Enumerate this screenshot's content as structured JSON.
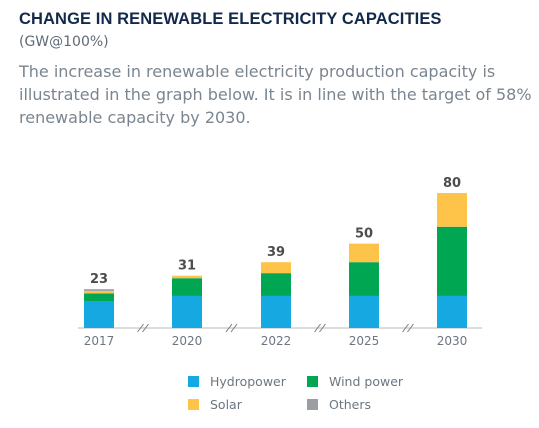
{
  "header": {
    "title": "CHANGE IN RENEWABLE ELECTRICITY CAPACITIES",
    "subtitle": "(GW@100%)",
    "description": "The increase in renewable electricity production capacity is illustrated in the graph below. It is in line with the target of 58% renewable capacity by 2030."
  },
  "colors": {
    "hydropower": "#16a9e1",
    "wind": "#00a651",
    "solar": "#fdc449",
    "others": "#9a9da1",
    "axis": "#b5b8bb",
    "total_label": "#4d4d4d",
    "tick_label": "#6b7680"
  },
  "chart_data": {
    "type": "bar",
    "stacked": true,
    "categories": [
      "2017",
      "2020",
      "2022",
      "2025",
      "2030"
    ],
    "series": [
      {
        "name": "Hydropower",
        "values": [
          16,
          19,
          19,
          19,
          19
        ]
      },
      {
        "name": "Wind power",
        "values": [
          4.5,
          10.5,
          13.5,
          20,
          41
        ]
      },
      {
        "name": "Solar",
        "values": [
          1.5,
          1.5,
          6.5,
          11,
          20
        ]
      },
      {
        "name": "Others",
        "values": [
          1,
          0,
          0,
          0,
          0
        ]
      }
    ],
    "totals": [
      "23",
      "31",
      "39",
      "50",
      "80"
    ],
    "ylim": [
      0,
      80
    ],
    "axis_breaks": true,
    "grid": false,
    "legend_position": "bottom",
    "legend": [
      "Hydropower",
      "Wind power",
      "Solar",
      "Others"
    ]
  }
}
